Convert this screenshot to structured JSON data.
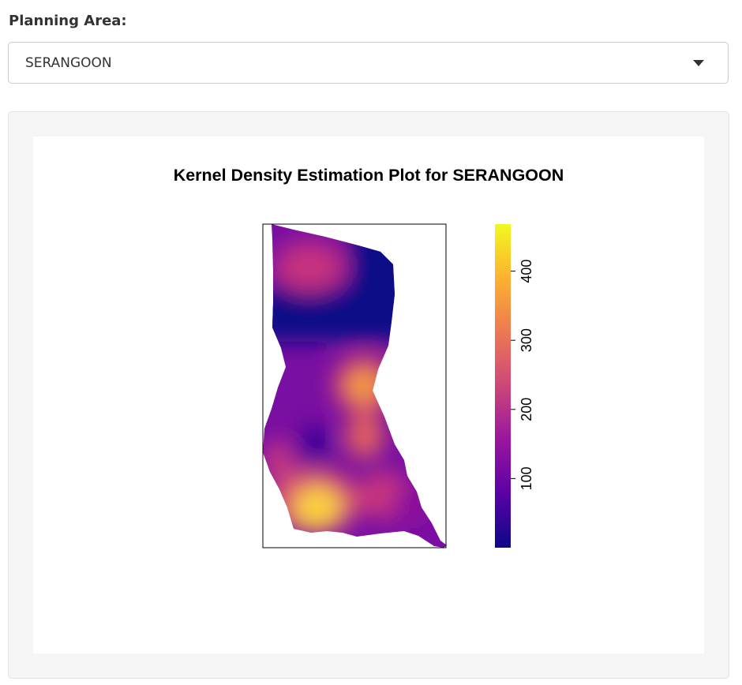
{
  "planning_area": {
    "label": "Planning Area:",
    "selected": "SERANGOON"
  },
  "plot": {
    "title": "Kernel Density Estimation Plot for SERANGOON",
    "colorbar": {
      "ticks": [
        100,
        200,
        300,
        400
      ],
      "range": [
        0,
        468
      ],
      "colors": [
        "#0d0887",
        "#5c01a6",
        "#9c179e",
        "#cc4778",
        "#ed7953",
        "#fdb42f",
        "#f0f921"
      ]
    }
  }
}
